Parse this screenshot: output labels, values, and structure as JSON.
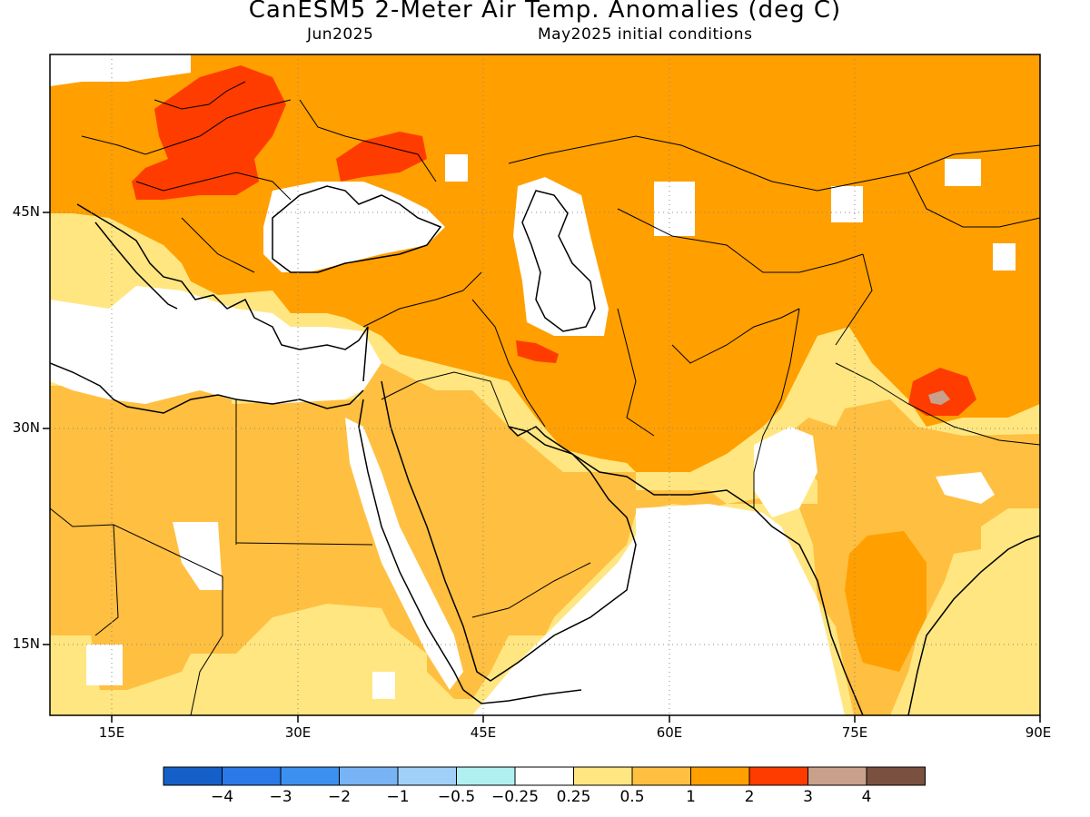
{
  "header": {
    "title": "CanESM5 2-Meter Air Temp. Anomalies (deg C)",
    "left_sub": "Jun2025",
    "right_sub": "May2025 initial conditions"
  },
  "axes": {
    "lat_labels": [
      "45N",
      "30N",
      "15N"
    ],
    "lon_labels": [
      "15E",
      "30E",
      "45E",
      "60E",
      "75E",
      "90E"
    ]
  },
  "map_extent": {
    "lon_min": 10,
    "lon_max": 90,
    "lat_min": 10,
    "lat_max": 56
  },
  "colorbar": {
    "colors": [
      "#1560c8",
      "#2b78e8",
      "#3c90f0",
      "#78b4f5",
      "#a0d0f8",
      "#b0f0f0",
      "#ffffff",
      "#ffe680",
      "#ffbf40",
      "#ff9f00",
      "#ff3c00",
      "#c8a08c",
      "#7a5040"
    ],
    "labels": [
      "−4",
      "−3",
      "−2",
      "−1",
      "−0.5",
      "−0.25",
      "0.25",
      "0.5",
      "1",
      "2",
      "3",
      "4"
    ]
  },
  "legend_scale": {
    "light_yellow": "#ffe680",
    "light_orange": "#ffbf40",
    "orange": "#ff9f00",
    "red": "#ff3c00",
    "tan": "#c8a08c"
  }
}
